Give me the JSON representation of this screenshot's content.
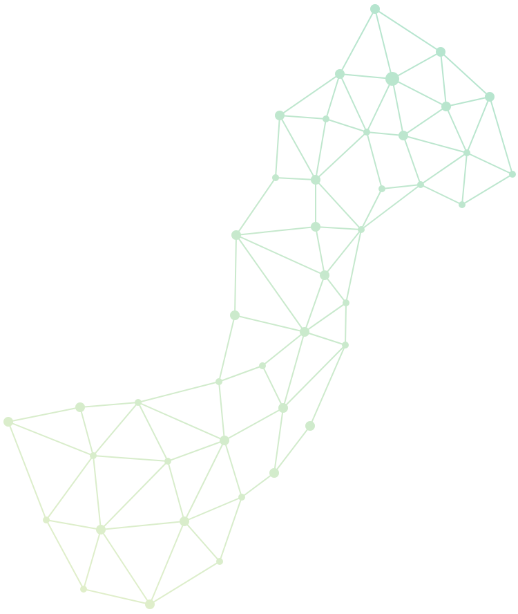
{
  "colors": {
    "background": "#ffffff",
    "gradient_top": "#b3e4cf",
    "gradient_bottom": "#e2efca"
  }
}
